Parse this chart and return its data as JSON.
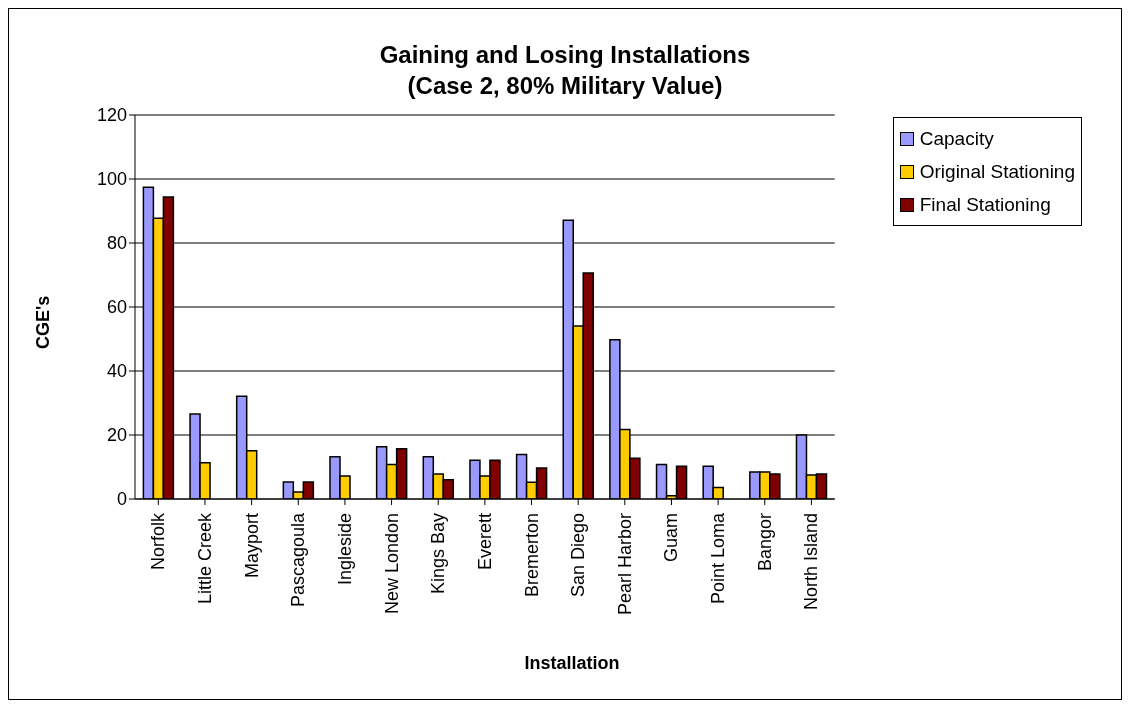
{
  "chart_data": {
    "type": "bar",
    "title": "Gaining and Losing Installations\n(Case 2, 80% Military Value)",
    "xlabel": "Installation",
    "ylabel": "CGE's",
    "categories": [
      "Norfolk",
      "Little Creek",
      "Mayport",
      "Pascagoula",
      "Ingleside",
      "New London",
      "Kings Bay",
      "Everett",
      "Bremerton",
      "San Diego",
      "Pearl Harbor",
      "Guam",
      "Point Loma",
      "Bangor",
      "North Island"
    ],
    "series": [
      {
        "name": "Capacity",
        "color": "#9999ff",
        "values": [
          97.4,
          26.6,
          32.1,
          5.3,
          13.2,
          16.3,
          13.2,
          12.1,
          13.9,
          87.1,
          49.8,
          10.8,
          10.2,
          8.4,
          20.0
        ]
      },
      {
        "name": "Original Stationing",
        "color": "#ffcc00",
        "values": [
          87.7,
          11.3,
          15.1,
          2.2,
          7.2,
          10.8,
          7.8,
          7.2,
          5.2,
          54.1,
          21.7,
          1.0,
          3.6,
          8.4,
          7.5
        ]
      },
      {
        "name": "Final Stationing",
        "color": "#800000",
        "values": [
          94.4,
          0,
          0,
          5.3,
          0,
          15.7,
          6.0,
          12.1,
          9.7,
          70.6,
          12.7,
          10.2,
          0,
          7.8,
          7.8
        ]
      }
    ],
    "ylim": [
      0,
      120
    ],
    "yticks": [
      0,
      20,
      40,
      60,
      80,
      100,
      120
    ],
    "grid": "y",
    "legend": "top right"
  }
}
